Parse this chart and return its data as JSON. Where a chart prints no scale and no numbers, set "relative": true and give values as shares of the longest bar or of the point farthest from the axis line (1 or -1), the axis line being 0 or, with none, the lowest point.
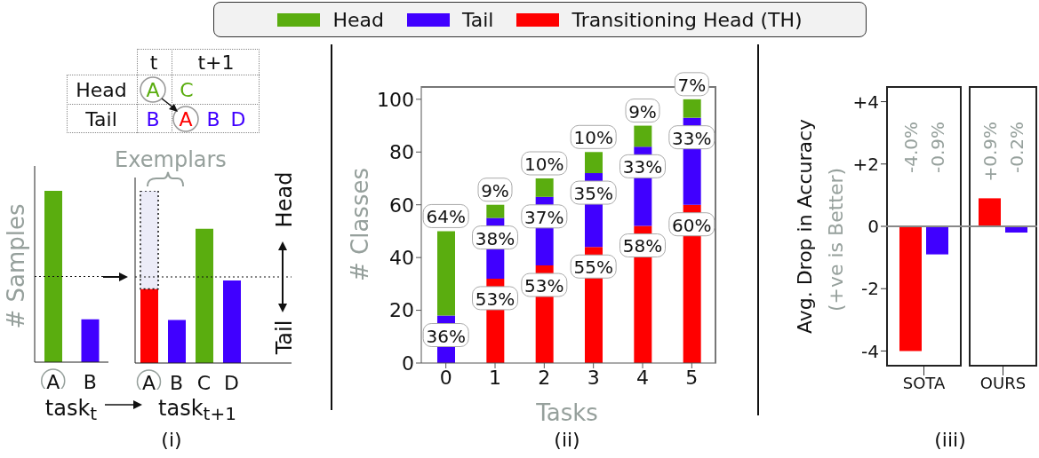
{
  "chart_data": [
    {
      "type": "other",
      "annotations": [
        "t",
        "t+1",
        "Head",
        "A",
        "C",
        "Tail",
        "B",
        "A",
        "B",
        "D"
      ]
    },
    {
      "type": "bar",
      "relative": true,
      "categories": [
        "A",
        "B"
      ],
      "values": [
        1,
        0.25
      ],
      "colors": [
        "#5aad0f",
        "#4000ff"
      ],
      "ylabel": "# Samples",
      "xlabel": "task$_{t}$",
      "ref_lines": [
        {
          "axis": "y",
          "value": 0.5,
          "line_style": "dotted"
        }
      ]
    },
    {
      "type": "bar",
      "relative": true,
      "stacked": true,
      "categories": [
        "A",
        "B",
        "C",
        "D"
      ],
      "series": [
        {
          "color": "#ff0000",
          "values": [
            0.43,
            null,
            null,
            null
          ]
        },
        {
          "color": "#ececf8",
          "values": [
            0.57,
            null,
            null,
            null
          ],
          "line_style": "dotted"
        },
        {
          "color": "#4000ff",
          "values": [
            null,
            0.25,
            null,
            0.48
          ]
        },
        {
          "color": "#5aad0f",
          "values": [
            null,
            null,
            0.78,
            null
          ]
        }
      ],
      "xlabel": "task$_{t+1}$",
      "annotations": [
        "Exemplars",
        "Head",
        "Tail",
        "(i)"
      ],
      "ref_lines": [
        {
          "axis": "y",
          "value": 0.5,
          "line_style": "dotted"
        }
      ]
    },
    {
      "type": "bar",
      "stacked": true,
      "categories": [
        "0",
        "1",
        "2",
        "3",
        "4",
        "5"
      ],
      "xlabel": "Tasks",
      "ylabel": "# Classes",
      "ylim": [
        0,
        105
      ],
      "yticks": [
        0,
        20,
        40,
        60,
        80,
        100
      ],
      "legend": "top",
      "annotations": [
        "(ii)",
        {
          "text": "64%",
          "x": "0",
          "y": 50
        },
        {
          "text": "36%",
          "x": "0",
          "y": 18
        },
        {
          "text": "9%",
          "x": "1",
          "y": 60
        },
        {
          "text": "38%",
          "x": "1",
          "y": 55
        },
        {
          "text": "53%",
          "x": "1",
          "y": 32
        },
        {
          "text": "10%",
          "x": "2",
          "y": 70
        },
        {
          "text": "37%",
          "x": "2",
          "y": 63
        },
        {
          "text": "53%",
          "x": "2",
          "y": 37
        },
        {
          "text": "10%",
          "x": "3",
          "y": 80
        },
        {
          "text": "35%",
          "x": "3",
          "y": 72
        },
        {
          "text": "55%",
          "x": "3",
          "y": 44
        },
        {
          "text": "9%",
          "x": "4",
          "y": 90
        },
        {
          "text": "33%",
          "x": "4",
          "y": 82
        },
        {
          "text": "58%",
          "x": "4",
          "y": 52
        },
        {
          "text": "7%",
          "x": "5",
          "y": 100
        },
        {
          "text": "33%",
          "x": "5",
          "y": 93
        },
        {
          "text": "60%",
          "x": "5",
          "y": 60
        }
      ],
      "series": [
        {
          "name": "Transitioning Head (TH)",
          "color": "#ff0000",
          "values": [
            0,
            32,
            37,
            44,
            52,
            60
          ]
        },
        {
          "name": "Tail",
          "color": "#4000ff",
          "values": [
            18,
            23,
            26,
            28,
            30,
            33
          ]
        },
        {
          "name": "Head",
          "color": "#5aad0f",
          "values": [
            32,
            5,
            7,
            8,
            8,
            7
          ]
        }
      ]
    },
    {
      "type": "bar",
      "categories": [
        "SOTA",
        "OURS"
      ],
      "ylabel": "Avg. Drop in Accuracy",
      "subtitle": "(+ve is Better)",
      "ylim": [
        -4.5,
        4.5
      ],
      "yticks": [
        {
          "value": 4,
          "label": "+4"
        },
        {
          "value": 2,
          "label": "+2"
        },
        0,
        -2,
        -4
      ],
      "ref_lines": [
        {
          "axis": "y",
          "value": 0,
          "color": "#888888"
        }
      ],
      "annotations": [
        "(iii)"
      ],
      "series": [
        {
          "color": "#ff0000",
          "values": [
            -4.0,
            0.9
          ],
          "value_labels": [
            "-4.0%",
            "+0.9%"
          ]
        },
        {
          "color": "#4000ff",
          "values": [
            -0.9,
            -0.2
          ],
          "value_labels": [
            "-0.9%",
            "-0.2%"
          ]
        }
      ]
    }
  ]
}
